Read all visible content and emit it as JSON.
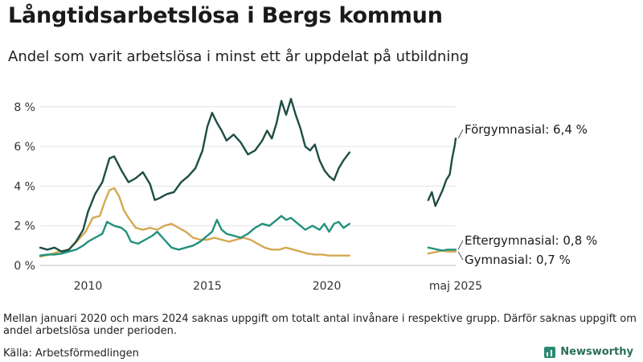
{
  "title": "Långtidsarbetslösa i Bergs kommun",
  "subtitle": "Andel som varit arbetslösa i minst ett år uppdelat på utbildning",
  "note": "Mellan januari 2020 och mars 2024 saknas uppgift om totalt antal invånare i respektive grupp. Därför saknas uppgift om andel arbetslösa under perioden.",
  "source": "Källa: Arbetsförmedlingen",
  "brand": "Newsworthy",
  "chart_data": {
    "type": "line",
    "title": "Långtidsarbetslösa i Bergs kommun",
    "subtitle": "Andel som varit arbetslösa i minst ett år uppdelat på utbildning",
    "ylim": [
      0,
      8.6
    ],
    "y_ticks": [
      0,
      2,
      4,
      6,
      8
    ],
    "y_tick_labels": [
      "0 %",
      "2 %",
      "4 %",
      "6 %",
      "8 %"
    ],
    "x_tick_labels": [
      {
        "label": "2010",
        "x": 2010.0
      },
      {
        "label": "2015",
        "x": 2015.0
      },
      {
        "label": "2020",
        "x": 2020.0
      },
      {
        "label": "maj 2025",
        "x": 2025.4
      }
    ],
    "grid": "horizontal",
    "series": [
      {
        "name": "Förgymnasial",
        "end_label": "Förgymnasial: 6,4 %",
        "color": "#1e4d45",
        "segments": [
          [
            [
              2008.0,
              0.9
            ],
            [
              2008.3,
              0.8
            ],
            [
              2008.6,
              0.9
            ],
            [
              2008.9,
              0.7
            ],
            [
              2009.2,
              0.8
            ],
            [
              2009.5,
              1.2
            ],
            [
              2009.8,
              1.8
            ],
            [
              2010.0,
              2.7
            ],
            [
              2010.3,
              3.6
            ],
            [
              2010.6,
              4.2
            ],
            [
              2010.9,
              5.4
            ],
            [
              2011.1,
              5.5
            ],
            [
              2011.4,
              4.8
            ],
            [
              2011.7,
              4.2
            ],
            [
              2012.0,
              4.4
            ],
            [
              2012.3,
              4.7
            ],
            [
              2012.6,
              4.1
            ],
            [
              2012.8,
              3.3
            ],
            [
              2013.0,
              3.4
            ],
            [
              2013.3,
              3.6
            ],
            [
              2013.6,
              3.7
            ],
            [
              2013.9,
              4.2
            ],
            [
              2014.2,
              4.5
            ],
            [
              2014.5,
              4.9
            ],
            [
              2014.8,
              5.8
            ],
            [
              2015.0,
              7.0
            ],
            [
              2015.2,
              7.7
            ],
            [
              2015.4,
              7.2
            ],
            [
              2015.6,
              6.8
            ],
            [
              2015.8,
              6.3
            ],
            [
              2016.1,
              6.6
            ],
            [
              2016.4,
              6.2
            ],
            [
              2016.7,
              5.6
            ],
            [
              2017.0,
              5.8
            ],
            [
              2017.3,
              6.3
            ],
            [
              2017.5,
              6.8
            ],
            [
              2017.7,
              6.4
            ],
            [
              2017.9,
              7.2
            ],
            [
              2018.1,
              8.3
            ],
            [
              2018.3,
              7.6
            ],
            [
              2018.5,
              8.4
            ],
            [
              2018.7,
              7.6
            ],
            [
              2018.9,
              6.9
            ],
            [
              2019.1,
              6.0
            ],
            [
              2019.3,
              5.8
            ],
            [
              2019.5,
              6.1
            ],
            [
              2019.7,
              5.3
            ],
            [
              2019.9,
              4.8
            ],
            [
              2020.1,
              4.5
            ],
            [
              2020.3,
              4.3
            ],
            [
              2020.5,
              4.9
            ],
            [
              2020.7,
              5.3
            ],
            [
              2020.95,
              5.7
            ]
          ],
          [
            [
              2024.25,
              3.3
            ],
            [
              2024.4,
              3.7
            ],
            [
              2024.55,
              3.0
            ],
            [
              2024.7,
              3.4
            ],
            [
              2024.85,
              3.8
            ],
            [
              2025.0,
              4.3
            ],
            [
              2025.15,
              4.6
            ],
            [
              2025.25,
              5.4
            ],
            [
              2025.35,
              6.0
            ],
            [
              2025.4,
              6.4
            ]
          ]
        ]
      },
      {
        "name": "Eftergymnasial",
        "end_label": "Eftergymnasial: 0,8 %",
        "color": "#22917d",
        "segments": [
          [
            [
              2008.0,
              0.5
            ],
            [
              2008.3,
              0.55
            ],
            [
              2008.6,
              0.55
            ],
            [
              2008.9,
              0.6
            ],
            [
              2009.2,
              0.7
            ],
            [
              2009.5,
              0.8
            ],
            [
              2009.8,
              1.0
            ],
            [
              2010.0,
              1.2
            ],
            [
              2010.3,
              1.4
            ],
            [
              2010.6,
              1.6
            ],
            [
              2010.8,
              2.2
            ],
            [
              2011.1,
              2.0
            ],
            [
              2011.4,
              1.9
            ],
            [
              2011.6,
              1.7
            ],
            [
              2011.8,
              1.2
            ],
            [
              2012.1,
              1.1
            ],
            [
              2012.4,
              1.3
            ],
            [
              2012.7,
              1.5
            ],
            [
              2012.9,
              1.7
            ],
            [
              2013.2,
              1.3
            ],
            [
              2013.5,
              0.9
            ],
            [
              2013.8,
              0.8
            ],
            [
              2014.1,
              0.9
            ],
            [
              2014.4,
              1.0
            ],
            [
              2014.7,
              1.2
            ],
            [
              2015.0,
              1.5
            ],
            [
              2015.2,
              1.7
            ],
            [
              2015.4,
              2.3
            ],
            [
              2015.6,
              1.8
            ],
            [
              2015.8,
              1.6
            ],
            [
              2016.1,
              1.5
            ],
            [
              2016.4,
              1.4
            ],
            [
              2016.7,
              1.6
            ],
            [
              2017.0,
              1.9
            ],
            [
              2017.3,
              2.1
            ],
            [
              2017.6,
              2.0
            ],
            [
              2017.9,
              2.3
            ],
            [
              2018.1,
              2.5
            ],
            [
              2018.3,
              2.3
            ],
            [
              2018.5,
              2.4
            ],
            [
              2018.7,
              2.2
            ],
            [
              2018.9,
              2.0
            ],
            [
              2019.1,
              1.8
            ],
            [
              2019.4,
              2.0
            ],
            [
              2019.7,
              1.8
            ],
            [
              2019.9,
              2.1
            ],
            [
              2020.1,
              1.7
            ],
            [
              2020.3,
              2.1
            ],
            [
              2020.5,
              2.2
            ],
            [
              2020.7,
              1.9
            ],
            [
              2020.95,
              2.1
            ]
          ],
          [
            [
              2024.25,
              0.9
            ],
            [
              2024.45,
              0.85
            ],
            [
              2024.65,
              0.8
            ],
            [
              2024.85,
              0.75
            ],
            [
              2025.05,
              0.8
            ],
            [
              2025.25,
              0.8
            ],
            [
              2025.4,
              0.8
            ]
          ]
        ]
      },
      {
        "name": "Gymnasial",
        "end_label": "Gymnasial: 0,7 %",
        "color": "#d4a853",
        "segments": [
          [
            [
              2008.0,
              0.45
            ],
            [
              2008.4,
              0.55
            ],
            [
              2008.8,
              0.7
            ],
            [
              2009.2,
              0.8
            ],
            [
              2009.6,
              1.3
            ],
            [
              2009.9,
              1.7
            ],
            [
              2010.2,
              2.4
            ],
            [
              2010.5,
              2.5
            ],
            [
              2010.7,
              3.2
            ],
            [
              2010.9,
              3.8
            ],
            [
              2011.1,
              3.9
            ],
            [
              2011.3,
              3.5
            ],
            [
              2011.5,
              2.8
            ],
            [
              2011.7,
              2.4
            ],
            [
              2012.0,
              1.9
            ],
            [
              2012.3,
              1.8
            ],
            [
              2012.6,
              1.9
            ],
            [
              2012.9,
              1.8
            ],
            [
              2013.2,
              2.0
            ],
            [
              2013.5,
              2.1
            ],
            [
              2013.8,
              1.9
            ],
            [
              2014.1,
              1.7
            ],
            [
              2014.4,
              1.4
            ],
            [
              2014.7,
              1.3
            ],
            [
              2015.0,
              1.3
            ],
            [
              2015.3,
              1.4
            ],
            [
              2015.6,
              1.3
            ],
            [
              2015.9,
              1.2
            ],
            [
              2016.2,
              1.3
            ],
            [
              2016.5,
              1.4
            ],
            [
              2016.8,
              1.3
            ],
            [
              2017.1,
              1.1
            ],
            [
              2017.4,
              0.9
            ],
            [
              2017.7,
              0.8
            ],
            [
              2018.0,
              0.8
            ],
            [
              2018.3,
              0.9
            ],
            [
              2018.6,
              0.8
            ],
            [
              2018.9,
              0.7
            ],
            [
              2019.2,
              0.6
            ],
            [
              2019.5,
              0.55
            ],
            [
              2019.8,
              0.55
            ],
            [
              2020.1,
              0.5
            ],
            [
              2020.4,
              0.5
            ],
            [
              2020.7,
              0.5
            ],
            [
              2020.95,
              0.5
            ]
          ],
          [
            [
              2024.25,
              0.6
            ],
            [
              2024.45,
              0.65
            ],
            [
              2024.65,
              0.7
            ],
            [
              2024.85,
              0.75
            ],
            [
              2025.05,
              0.7
            ],
            [
              2025.25,
              0.7
            ],
            [
              2025.4,
              0.7
            ]
          ]
        ]
      }
    ]
  }
}
